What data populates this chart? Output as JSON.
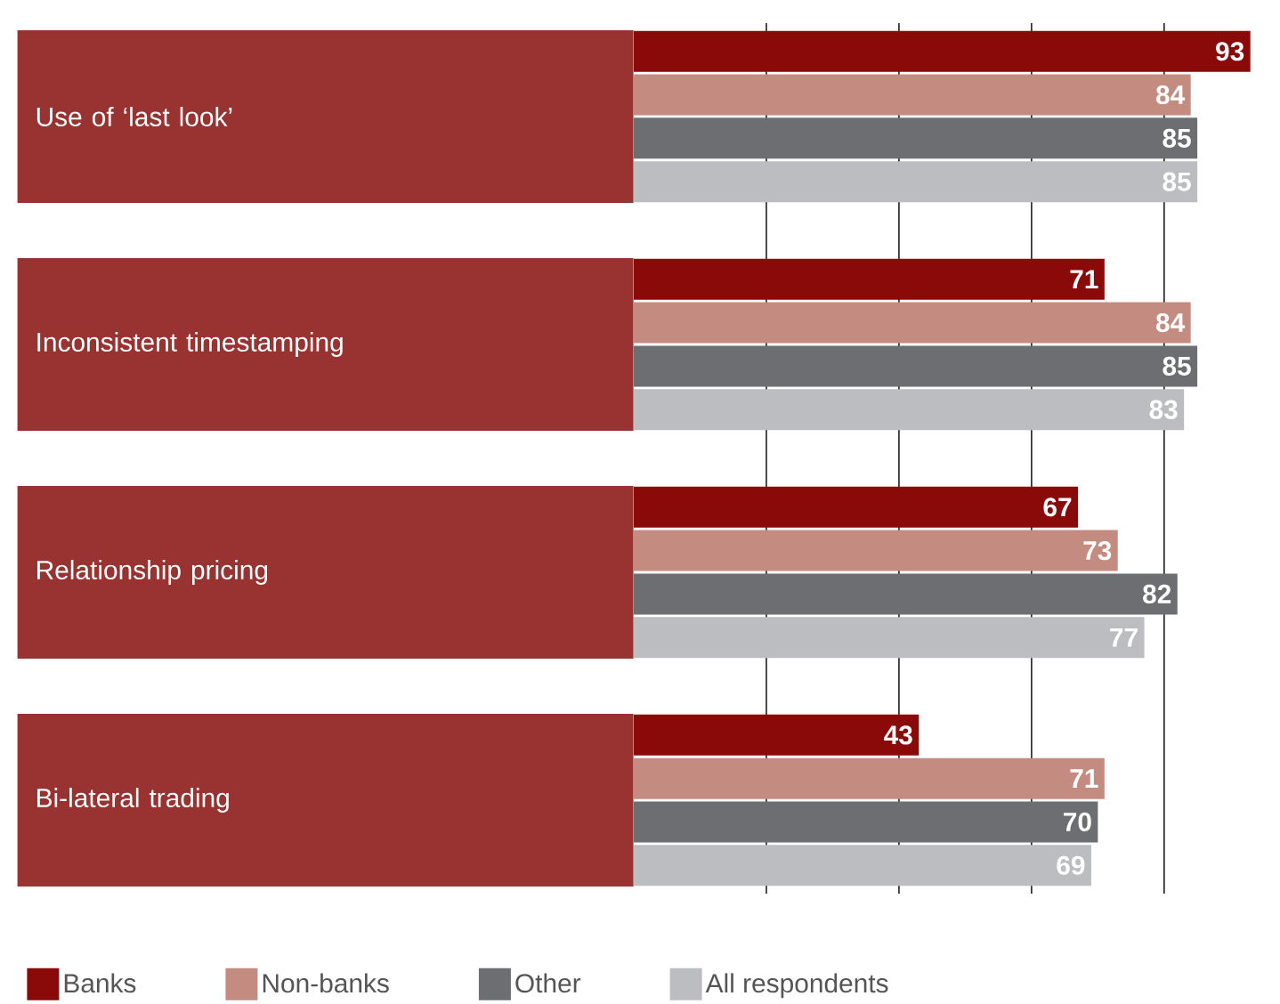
{
  "chart_data": {
    "type": "bar",
    "orientation": "horizontal",
    "categories": [
      "Use of ‘last look’",
      "Inconsistent timestamping",
      "Relationship pricing",
      "Bi-lateral trading"
    ],
    "series": [
      {
        "name": "Banks",
        "color": "#8a0a0a",
        "values": [
          93,
          71,
          67,
          43
        ]
      },
      {
        "name": "Non-banks",
        "color": "#c48b80",
        "values": [
          84,
          84,
          73,
          71
        ]
      },
      {
        "name": "Other",
        "color": "#6d6e71",
        "values": [
          85,
          85,
          82,
          70
        ]
      },
      {
        "name": "All respondents",
        "color": "#bcbdc0",
        "values": [
          85,
          83,
          77,
          69
        ]
      }
    ],
    "xticks": [
      {
        "value": 20,
        "label": null
      },
      {
        "value": 40,
        "label": null
      },
      {
        "value": 60,
        "label": null
      },
      {
        "value": 80,
        "label": null
      }
    ],
    "tick_labels": "y",
    "grid": "x",
    "data_labels": true,
    "legend": "bottom"
  }
}
